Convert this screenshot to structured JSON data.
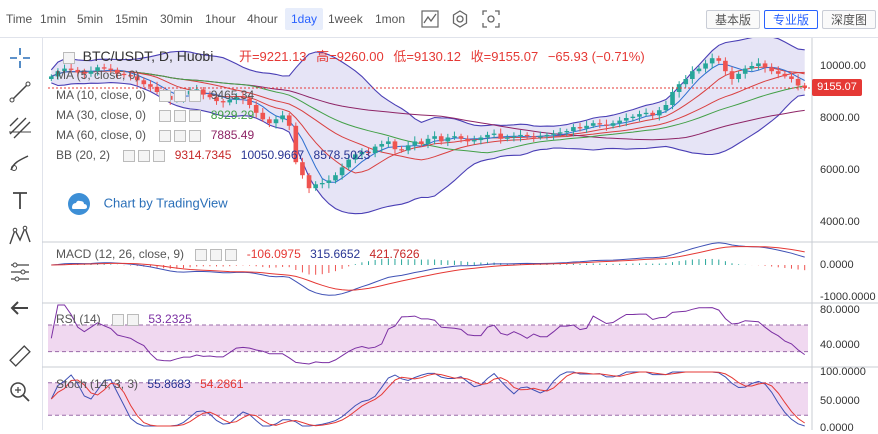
{
  "toolbar": {
    "timeframes": [
      "Time",
      "1min",
      "5min",
      "15min",
      "30min",
      "1hour",
      "4hour",
      "1day",
      "1week",
      "1mon"
    ],
    "active": "1day",
    "modes": [
      "基本版",
      "专业版",
      "深度图"
    ],
    "active_mode": "专业版"
  },
  "symbol": {
    "title": "BTC/USDT, D, Huobi",
    "open_label": "开=9221.13",
    "high_label": "高=9260.00",
    "low_label": "低=9130.12",
    "close_label": "收=9155.07",
    "change_label": "−65.93 (−0.71%)"
  },
  "indicators": {
    "ma5": {
      "label": "MA (5, close, 0)",
      "value": "",
      "color": "#7b2fa3"
    },
    "ma10": {
      "label": "MA (10, close, 0)",
      "value": "9465.34",
      "color": "#d94040"
    },
    "ma30": {
      "label": "MA (30, close, 0)",
      "value": "8929.29",
      "color": "#43a047"
    },
    "ma60": {
      "label": "MA (60, close, 0)",
      "value": "7885.49",
      "color": "#8e2466"
    },
    "bb": {
      "label": "BB (20, 2)",
      "mid": "9314.7345",
      "upper": "10050.9667",
      "lower": "8578.5023"
    },
    "macd": {
      "label": "MACD (12, 26, close, 9)",
      "hist": "-106.0975",
      "macd": "315.6652",
      "signal": "421.7626"
    },
    "rsi": {
      "label": "RSI (14)",
      "value": "53.2325"
    },
    "stoch": {
      "label": "Stoch (14, 3, 3)",
      "k": "55.8683",
      "d": "54.2861"
    }
  },
  "watermark": "Chart by TradingView",
  "last_price": "9155.07",
  "colors": {
    "up": "#26a69a",
    "down": "#ef5350",
    "bb_fill": "#dcd8f2",
    "bb_line": "#4a3fb5",
    "indicator_bg": "#f0d8f0"
  },
  "chart_data": [
    {
      "type": "candlestick",
      "title": "BTC/USDT, D, Huobi",
      "y_ticks": [
        "10000.00",
        "8000.00",
        "6000.00",
        "4000.00"
      ],
      "ylim": [
        3500,
        11500
      ],
      "ohlc_last": {
        "open": 9221.13,
        "high": 9260.0,
        "low": 9130.12,
        "close": 9155.07
      },
      "closes": [
        9600,
        9800,
        9900,
        9850,
        9750,
        9700,
        9800,
        9950,
        9900,
        9850,
        9700,
        9650,
        9600,
        9450,
        9300,
        9200,
        9000,
        8850,
        8700,
        8750,
        8900,
        9050,
        9100,
        8900,
        8800,
        8650,
        8600,
        8700,
        8800,
        8750,
        8500,
        8200,
        7950,
        7800,
        7950,
        8100,
        7700,
        6300,
        5800,
        5300,
        5450,
        5500,
        5600,
        5800,
        6100,
        6400,
        6600,
        6700,
        6650,
        6900,
        7000,
        7100,
        6800,
        6750,
        6950,
        7100,
        7000,
        7200,
        7300,
        7100,
        7250,
        7300,
        7200,
        7100,
        7150,
        7250,
        7350,
        7400,
        7200,
        7250,
        7300,
        7350,
        7300,
        7250,
        7300,
        7350,
        7400,
        7450,
        7500,
        7650,
        7600,
        7700,
        7800,
        7750,
        7700,
        7800,
        7900,
        8000,
        8050,
        8150,
        8200,
        8100,
        8300,
        8500,
        9000,
        9300,
        9500,
        9800,
        9900,
        10100,
        10300,
        10200,
        9800,
        9500,
        9700,
        9900,
        10000,
        10100,
        9950,
        9800,
        9700,
        9600,
        9500,
        9250,
        9155
      ]
    },
    {
      "type": "line",
      "title": "MACD (12, 26, close, 9)",
      "y_ticks": [
        "0.0000",
        "-1000.0000"
      ]
    },
    {
      "type": "line",
      "title": "RSI (14)",
      "y_ticks": [
        "80.0000",
        "40.0000"
      ],
      "bands": [
        70,
        30
      ]
    },
    {
      "type": "line",
      "title": "Stoch (14, 3, 3)",
      "y_ticks": [
        "100.0000",
        "50.0000",
        "0.0000"
      ],
      "bands": [
        80,
        20
      ]
    }
  ]
}
